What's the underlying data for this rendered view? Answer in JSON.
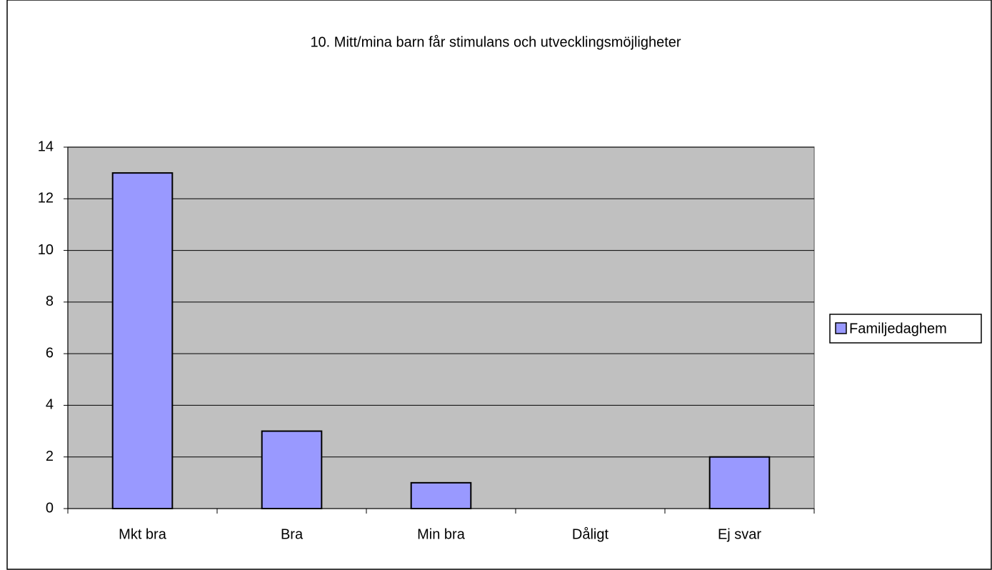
{
  "chart_data": {
    "type": "bar",
    "title": "10. Mitt/mina barn får stimulans och utvecklingsmöjligheter",
    "categories": [
      "Mkt bra",
      "Bra",
      "Min bra",
      "Dåligt",
      "Ej svar"
    ],
    "series": [
      {
        "name": "Familjedaghem",
        "color": "#9999ff",
        "values": [
          13,
          3,
          1,
          0,
          2
        ]
      }
    ],
    "ylim": [
      0,
      14
    ],
    "yticks": [
      0,
      2,
      4,
      6,
      8,
      10,
      12,
      14
    ],
    "grid": true,
    "legend": "right"
  }
}
